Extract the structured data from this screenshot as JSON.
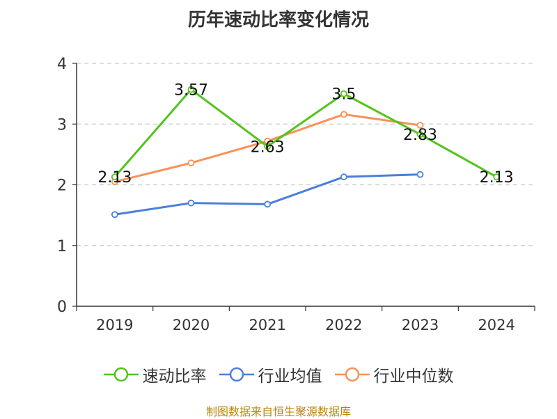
{
  "chart_data": {
    "type": "line",
    "title": "历年速动比率变化情况",
    "categories": [
      "2019",
      "2020",
      "2021",
      "2022",
      "2023",
      "2024"
    ],
    "ylim": [
      0,
      4
    ],
    "yticks": [
      0,
      1,
      2,
      3,
      4
    ],
    "grid": true,
    "legend_position": "bottom",
    "series": [
      {
        "name": "速动比率",
        "color": "#52c41a",
        "values": [
          2.13,
          3.57,
          2.63,
          3.5,
          2.83,
          2.13
        ],
        "labels": [
          "2.13",
          "3.57",
          "2.63",
          "3.5",
          "2.83",
          "2.13"
        ]
      },
      {
        "name": "行业均值",
        "color": "#4a7fdb",
        "values": [
          1.51,
          1.7,
          1.68,
          2.13,
          2.17,
          null
        ]
      },
      {
        "name": "行业中位数",
        "color": "#f79259",
        "values": [
          2.05,
          2.36,
          2.72,
          3.16,
          2.98,
          null
        ]
      }
    ]
  },
  "source": "制图数据来自恒生聚源数据库"
}
